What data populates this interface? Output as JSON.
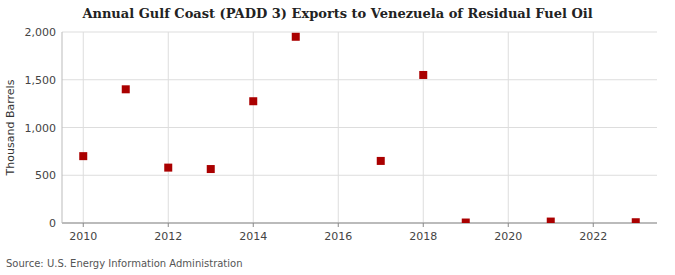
{
  "chart_data": {
    "type": "scatter",
    "title": "Annual Gulf Coast (PADD 3) Exports to Venezuela of Residual Fuel Oil",
    "y_label": "Thousand Barrels",
    "annotations": [
      "Source: U.S. Energy Information Administration"
    ],
    "x": [
      2010,
      2011,
      2012,
      2013,
      2014,
      2015,
      2017,
      2018,
      2019,
      2021,
      2023
    ],
    "values": [
      700,
      1400,
      580,
      565,
      1275,
      1950,
      650,
      1550,
      5,
      15,
      8
    ],
    "color": "#aa0000",
    "marker": "square",
    "xlim": [
      2009.5,
      2023.5
    ],
    "ylim": [
      0,
      2000
    ],
    "xticks": [
      2010,
      2012,
      2014,
      2016,
      2018,
      2020,
      2022
    ],
    "yticks": [
      0,
      500,
      {
        "value": 1000,
        "label": "1,000"
      },
      {
        "value": 1500,
        "label": "1,500"
      },
      {
        "value": 2000,
        "label": "2,000"
      }
    ],
    "grid": true
  }
}
